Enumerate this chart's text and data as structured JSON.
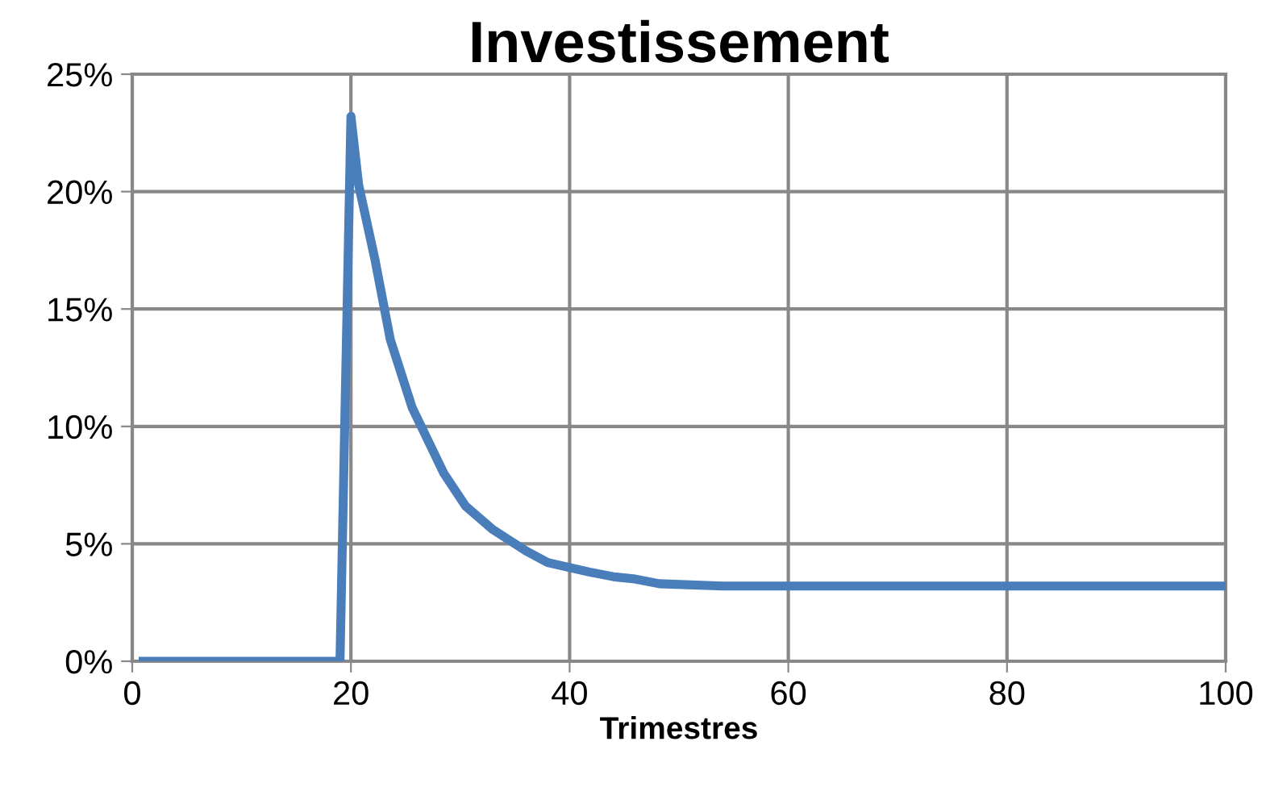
{
  "chart_data": {
    "type": "line",
    "title": "Investissement",
    "xlabel": "Trimestres",
    "x": [
      1,
      19,
      20,
      20.7,
      22.2,
      23.6,
      25.6,
      28.5,
      30.5,
      33,
      36,
      38,
      41.8,
      44,
      46,
      48.2,
      54,
      100
    ],
    "series": [
      {
        "color": "#4a7ebb",
        "values": [
          0,
          0,
          23.2,
          20.3,
          17.1,
          13.7,
          10.8,
          8.0,
          6.6,
          5.6,
          4.7,
          4.2,
          3.8,
          3.6,
          3.5,
          3.3,
          3.2,
          3.2
        ]
      }
    ],
    "xlim": [
      0,
      100
    ],
    "xticks": [
      0,
      20,
      40,
      60,
      80,
      100
    ],
    "ylim": [
      0,
      25
    ],
    "yticks": [
      {
        "value": 0,
        "label": "0%"
      },
      {
        "value": 5,
        "label": "5%"
      },
      {
        "value": 10,
        "label": "10%"
      },
      {
        "value": 15,
        "label": "15%"
      },
      {
        "value": 20,
        "label": "20%"
      },
      {
        "value": 25,
        "label": "25%"
      }
    ],
    "grid": true,
    "legend": false,
    "marker": "none",
    "line_style": "solid"
  }
}
